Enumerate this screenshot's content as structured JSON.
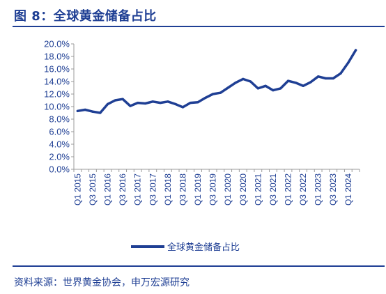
{
  "figure": {
    "title": "图 8：全球黄金储备占比",
    "source": "资料来源：世界黄金协会，申万宏源研究"
  },
  "colors": {
    "line": "#1f3f94",
    "text": "#1f3f94",
    "axis": "#9b9b9b"
  },
  "chart_data": {
    "type": "line",
    "title": "",
    "xlabel": "",
    "ylabel": "",
    "ylim": [
      0,
      20
    ],
    "y_ticks": [
      "0.0%",
      "2.0%",
      "4.0%",
      "6.0%",
      "8.0%",
      "10.0%",
      "12.0%",
      "14.0%",
      "16.0%",
      "18.0%",
      "20.0%"
    ],
    "grid": false,
    "legend": "bottom",
    "x": [
      "Q1 2015",
      "Q2 2015",
      "Q3 2015",
      "Q4 2015",
      "Q1 2016",
      "Q2 2016",
      "Q3 2016",
      "Q4 2016",
      "Q1 2017",
      "Q2 2017",
      "Q3 2017",
      "Q4 2017",
      "Q1 2018",
      "Q2 2018",
      "Q3 2018",
      "Q4 2018",
      "Q1 2019",
      "Q2 2019",
      "Q3 2019",
      "Q4 2019",
      "Q1 2020",
      "Q2 2020",
      "Q3 2020",
      "Q4 2020",
      "Q1 2021",
      "Q2 2021",
      "Q3 2021",
      "Q4 2021",
      "Q1 2022",
      "Q2 2022",
      "Q3 2022",
      "Q4 2022",
      "Q1 2023",
      "Q2 2023",
      "Q3 2023",
      "Q4 2023",
      "Q1 2024",
      "Q2 2024"
    ],
    "x_tick_labels": [
      "Q1 2015",
      "Q3 2015",
      "Q1 2016",
      "Q3 2016",
      "Q1 2017",
      "Q3 2017",
      "Q1 2018",
      "Q3 2018",
      "Q1 2019",
      "Q3 2019",
      "Q1 2020",
      "Q3 2020",
      "Q1 2021",
      "Q3 2021",
      "Q1 2022",
      "Q3 2022",
      "Q1 2023",
      "Q3 2023",
      "Q1 2024"
    ],
    "series": [
      {
        "name": "全球黄金储备占比",
        "values": [
          9.3,
          9.5,
          9.2,
          9.0,
          10.4,
          11.0,
          11.2,
          10.1,
          10.6,
          10.5,
          10.8,
          10.6,
          10.8,
          10.4,
          9.9,
          10.6,
          10.7,
          11.4,
          12.0,
          12.2,
          13.0,
          13.8,
          14.4,
          14.0,
          12.9,
          13.3,
          12.6,
          12.9,
          14.1,
          13.8,
          13.3,
          13.9,
          14.8,
          14.5,
          14.5,
          15.3,
          17.0,
          19.0
        ]
      }
    ]
  }
}
